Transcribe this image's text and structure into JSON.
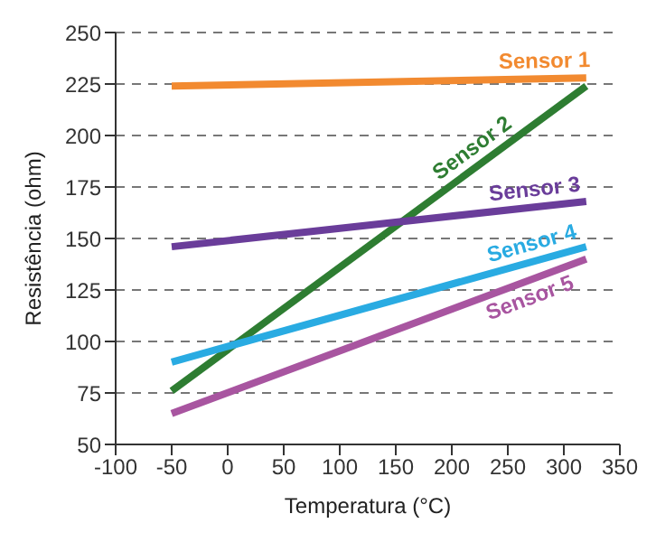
{
  "chart_data": {
    "type": "line",
    "xlabel": "Temperatura (°C)",
    "ylabel": "Resistência (ohm)",
    "xlim": [
      -100,
      350
    ],
    "xticks": [
      -100,
      -50,
      0,
      50,
      100,
      150,
      200,
      250,
      300,
      350
    ],
    "ylim": [
      50,
      250
    ],
    "yticks": [
      50,
      75,
      100,
      125,
      150,
      175,
      200,
      225,
      250
    ],
    "grid": "y",
    "marker": "none",
    "line_style": "solid",
    "x": [
      -50,
      320
    ],
    "series": [
      {
        "name": "Sensor 1",
        "color": "#f28a30",
        "values": [
          224,
          228
        ]
      },
      {
        "name": "Sensor 2",
        "color": "#2e7d32",
        "values": [
          76,
          224
        ]
      },
      {
        "name": "Sensor 3",
        "color": "#6a3d9a",
        "values": [
          146,
          168
        ]
      },
      {
        "name": "Sensor 4",
        "color": "#29abe2",
        "values": [
          90,
          146
        ]
      },
      {
        "name": "Sensor 5",
        "color": "#a855a0",
        "values": [
          65,
          140
        ]
      }
    ]
  }
}
